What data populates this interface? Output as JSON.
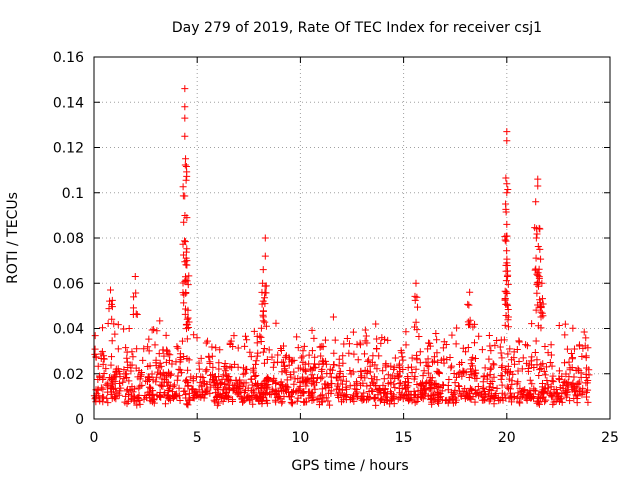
{
  "chart_data": {
    "type": "scatter",
    "title": "Day 279 of 2019, Rate Of TEC Index for receiver csj1",
    "xlabel": "GPS time / hours",
    "ylabel": "ROTI / TECUs",
    "xlim": [
      0,
      25
    ],
    "ylim": [
      0,
      0.16
    ],
    "xticks": [
      0,
      5,
      10,
      15,
      20,
      25
    ],
    "yticks": [
      0,
      0.02,
      0.04,
      0.06,
      0.08,
      0.1,
      0.12,
      0.14,
      0.16
    ],
    "xtick_labels": [
      "0",
      "5",
      "10",
      "15",
      "20",
      "25"
    ],
    "ytick_labels": [
      "0",
      "0.02",
      "0.04",
      "0.06",
      "0.08",
      "0.1",
      "0.12",
      "0.14",
      "0.16"
    ],
    "grid": true,
    "marker": "+",
    "color": "#ff0000",
    "series": [
      {
        "name": "ROTI",
        "x_range": [
          0,
          24
        ],
        "baseline_band": [
          0.008,
          0.045
        ],
        "peaks": [
          {
            "x": 0.8,
            "y": 0.057
          },
          {
            "x": 2.0,
            "y": 0.063
          },
          {
            "x": 4.4,
            "y": 0.146
          },
          {
            "x": 4.4,
            "y": 0.138
          },
          {
            "x": 4.4,
            "y": 0.133
          },
          {
            "x": 4.4,
            "y": 0.125
          },
          {
            "x": 4.5,
            "y": 0.089
          },
          {
            "x": 4.5,
            "y": 0.07
          },
          {
            "x": 4.5,
            "y": 0.068
          },
          {
            "x": 8.3,
            "y": 0.08
          },
          {
            "x": 8.3,
            "y": 0.072
          },
          {
            "x": 8.2,
            "y": 0.066
          },
          {
            "x": 15.6,
            "y": 0.06
          },
          {
            "x": 18.2,
            "y": 0.056
          },
          {
            "x": 20.0,
            "y": 0.127
          },
          {
            "x": 20.0,
            "y": 0.123
          },
          {
            "x": 20.0,
            "y": 0.104
          },
          {
            "x": 20.0,
            "y": 0.1
          },
          {
            "x": 20.0,
            "y": 0.086
          },
          {
            "x": 20.0,
            "y": 0.069
          },
          {
            "x": 21.5,
            "y": 0.106
          },
          {
            "x": 21.5,
            "y": 0.103
          },
          {
            "x": 21.4,
            "y": 0.096
          },
          {
            "x": 21.6,
            "y": 0.084
          },
          {
            "x": 21.6,
            "y": 0.075
          },
          {
            "x": 21.7,
            "y": 0.06
          }
        ]
      }
    ]
  }
}
